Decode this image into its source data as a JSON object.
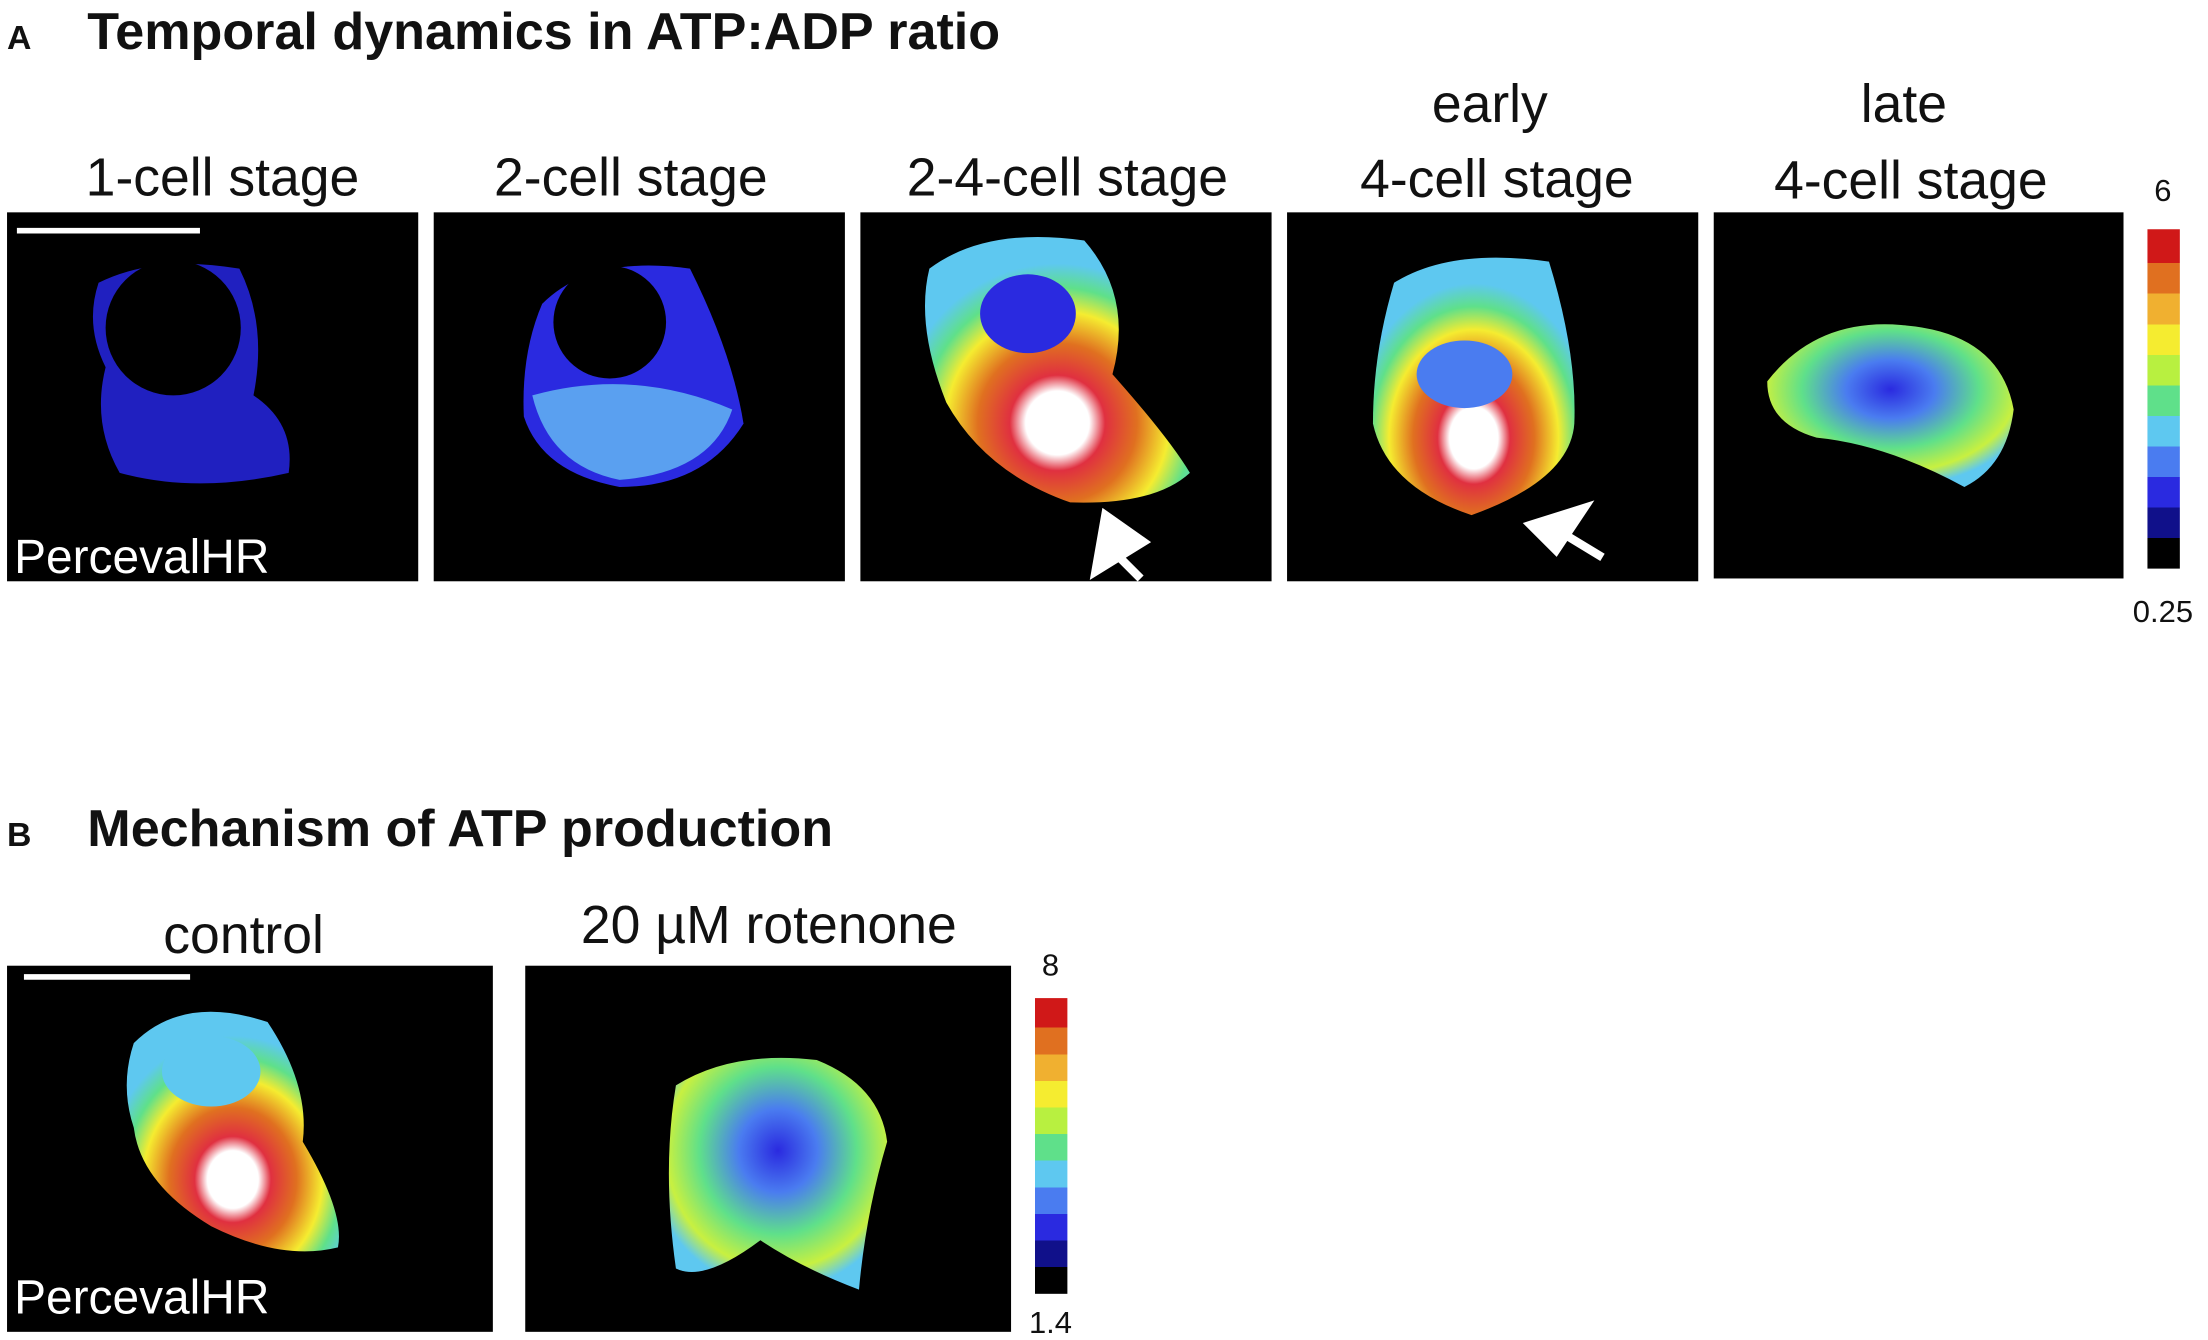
{
  "panel_a": {
    "letter": "A",
    "title": "Temporal dynamics in ATP:ADP ratio",
    "images": [
      {
        "label": [
          "1-cell stage"
        ]
      },
      {
        "label": [
          "2-cell stage"
        ]
      },
      {
        "label": [
          "2-4-cell stage"
        ]
      },
      {
        "label": [
          "early",
          "4-cell stage"
        ]
      },
      {
        "label": [
          "late",
          "4-cell stage"
        ]
      }
    ],
    "overlay": "PercevalHR",
    "colorbar": {
      "max": "6",
      "min": "0.25"
    }
  },
  "panel_b": {
    "letter": "B",
    "title": "Mechanism of ATP production",
    "images": [
      {
        "label": [
          "control"
        ]
      },
      {
        "label": [
          "20 µM rotenone"
        ]
      }
    ],
    "overlay": "PercevalHR",
    "colorbar": {
      "max": "8",
      "min": "1.4"
    }
  }
}
